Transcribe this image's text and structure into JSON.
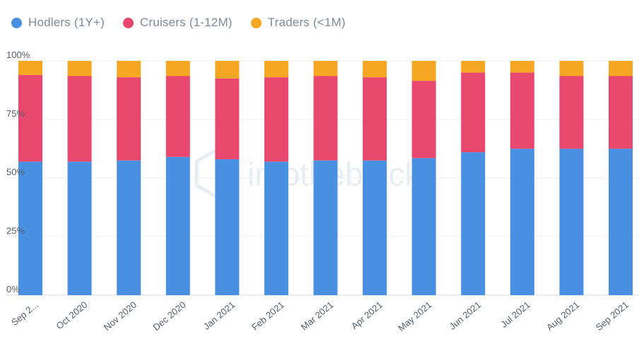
{
  "legend": {
    "items": [
      {
        "label": "Hodlers (1Y+)",
        "color": "#4a90e2"
      },
      {
        "label": "Cruisers (1-12M)",
        "color": "#e8476e"
      },
      {
        "label": "Traders (<1M)",
        "color": "#f5a623"
      }
    ]
  },
  "watermark": {
    "text": "intotheblock"
  },
  "chart_data": {
    "type": "bar",
    "stacked": true,
    "categories": [
      "Sep 2...",
      "Oct 2020",
      "Nov 2020",
      "Dec 2020",
      "Jan 2021",
      "Feb 2021",
      "Mar 2021",
      "Apr 2021",
      "May 2021",
      "Jun 2021",
      "Jul 2021",
      "Aug 2021",
      "Sep 2021"
    ],
    "series": [
      {
        "name": "Hodlers (1Y+)",
        "color": "#4a90e2",
        "values": [
          57.0,
          57.0,
          57.5,
          59.0,
          58.0,
          57.0,
          57.5,
          57.5,
          58.5,
          61.0,
          62.5,
          62.5,
          62.5
        ]
      },
      {
        "name": "Cruisers (1-12M)",
        "color": "#e8476e",
        "values": [
          37.0,
          36.5,
          35.5,
          34.5,
          34.5,
          36.0,
          36.0,
          35.5,
          33.0,
          34.0,
          32.5,
          31.0,
          31.0
        ]
      },
      {
        "name": "Traders (<1M)",
        "color": "#f5a623",
        "values": [
          6.0,
          6.5,
          7.0,
          6.5,
          7.5,
          7.0,
          6.5,
          7.0,
          8.5,
          5.0,
          5.0,
          6.5,
          6.5
        ]
      }
    ],
    "ylim": [
      0,
      100
    ],
    "yticks": [
      "0%",
      "25%",
      "50%",
      "75%",
      "100%"
    ],
    "ytick_values": [
      0,
      25,
      50,
      75,
      100
    ],
    "xlabel": "",
    "ylabel": "",
    "grid": true,
    "legend_position": "top-left"
  }
}
